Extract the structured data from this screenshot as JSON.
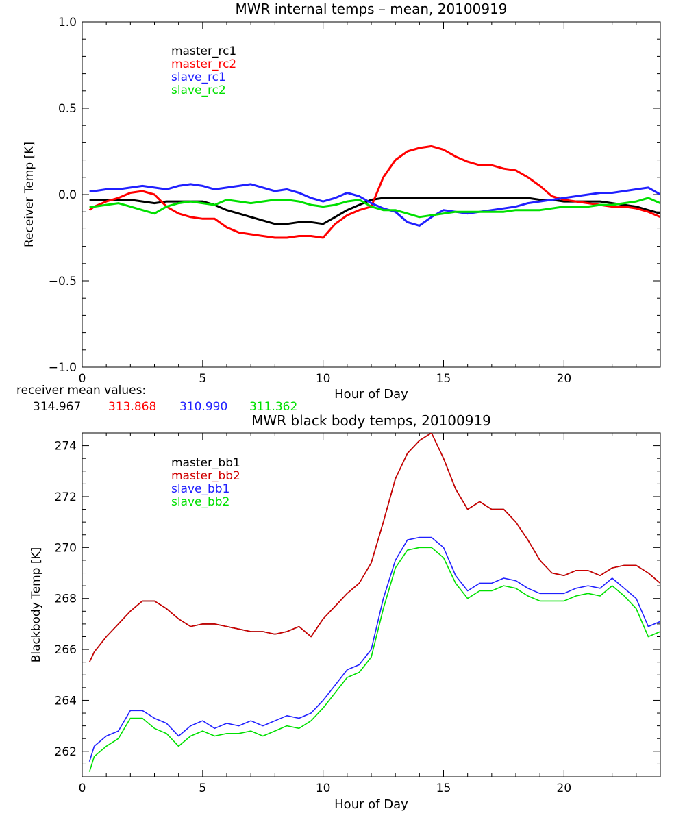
{
  "chart_data": [
    {
      "type": "line",
      "title": "MWR internal temps – mean, 20100919",
      "xlabel": "Hour of Day",
      "ylabel": "Receiver Temp [K]",
      "xlim": [
        0,
        24
      ],
      "ylim": [
        -1.0,
        1.0
      ],
      "x_ticks": [
        0,
        5,
        10,
        15,
        20
      ],
      "x_tick_labels": [
        "0",
        "5",
        "10",
        "15",
        "20"
      ],
      "y_ticks": [
        -1.0,
        -0.5,
        0.0,
        0.5,
        1.0
      ],
      "y_tick_labels": [
        "−1.0",
        "−0.5",
        "0.0",
        "0.5",
        "1.0"
      ],
      "grid": false,
      "legend_placement": "top-left",
      "x": [
        0.3,
        0.5,
        1.0,
        1.5,
        2.0,
        2.5,
        3.0,
        3.5,
        4.0,
        4.5,
        5.0,
        5.5,
        6.0,
        6.5,
        7.0,
        7.5,
        8.0,
        8.5,
        9.0,
        9.5,
        10.0,
        10.5,
        11.0,
        11.5,
        12.0,
        12.5,
        13.0,
        13.5,
        14.0,
        14.5,
        15.0,
        15.5,
        16.0,
        16.5,
        17.0,
        17.5,
        18.0,
        18.5,
        19.0,
        19.5,
        20.0,
        20.5,
        21.0,
        21.5,
        22.0,
        22.5,
        23.0,
        23.5,
        24.0
      ],
      "series": [
        {
          "name": "master_rc1",
          "color": "#000000",
          "values": [
            -0.03,
            -0.03,
            -0.03,
            -0.03,
            -0.03,
            -0.04,
            -0.05,
            -0.04,
            -0.04,
            -0.04,
            -0.04,
            -0.06,
            -0.09,
            -0.11,
            -0.13,
            -0.15,
            -0.17,
            -0.17,
            -0.16,
            -0.16,
            -0.17,
            -0.13,
            -0.09,
            -0.06,
            -0.03,
            -0.02,
            -0.02,
            -0.02,
            -0.02,
            -0.02,
            -0.02,
            -0.02,
            -0.02,
            -0.02,
            -0.02,
            -0.02,
            -0.02,
            -0.02,
            -0.03,
            -0.03,
            -0.04,
            -0.04,
            -0.04,
            -0.04,
            -0.05,
            -0.06,
            -0.07,
            -0.09,
            -0.11
          ]
        },
        {
          "name": "master_rc2",
          "color": "#ff0000",
          "values": [
            -0.09,
            -0.07,
            -0.04,
            -0.02,
            0.01,
            0.02,
            0.0,
            -0.07,
            -0.11,
            -0.13,
            -0.14,
            -0.14,
            -0.19,
            -0.22,
            -0.23,
            -0.24,
            -0.25,
            -0.25,
            -0.24,
            -0.24,
            -0.25,
            -0.17,
            -0.12,
            -0.09,
            -0.07,
            0.1,
            0.2,
            0.25,
            0.27,
            0.28,
            0.26,
            0.22,
            0.19,
            0.17,
            0.17,
            0.15,
            0.14,
            0.1,
            0.05,
            -0.01,
            -0.03,
            -0.04,
            -0.05,
            -0.06,
            -0.07,
            -0.07,
            -0.08,
            -0.1,
            -0.13
          ]
        },
        {
          "name": "slave_rc1",
          "color": "#2020ff",
          "values": [
            0.02,
            0.02,
            0.03,
            0.03,
            0.04,
            0.05,
            0.04,
            0.03,
            0.05,
            0.06,
            0.05,
            0.03,
            0.04,
            0.05,
            0.06,
            0.04,
            0.02,
            0.03,
            0.01,
            -0.02,
            -0.04,
            -0.02,
            0.01,
            -0.01,
            -0.05,
            -0.08,
            -0.1,
            -0.16,
            -0.18,
            -0.13,
            -0.09,
            -0.1,
            -0.11,
            -0.1,
            -0.09,
            -0.08,
            -0.07,
            -0.05,
            -0.04,
            -0.03,
            -0.02,
            -0.01,
            0.0,
            0.01,
            0.01,
            0.02,
            0.03,
            0.04,
            0.0
          ]
        },
        {
          "name": "slave_rc2",
          "color": "#00e000",
          "values": [
            -0.07,
            -0.07,
            -0.06,
            -0.05,
            -0.07,
            -0.09,
            -0.11,
            -0.07,
            -0.05,
            -0.04,
            -0.05,
            -0.06,
            -0.03,
            -0.04,
            -0.05,
            -0.04,
            -0.03,
            -0.03,
            -0.04,
            -0.06,
            -0.07,
            -0.06,
            -0.04,
            -0.03,
            -0.07,
            -0.09,
            -0.09,
            -0.11,
            -0.13,
            -0.12,
            -0.11,
            -0.1,
            -0.1,
            -0.1,
            -0.1,
            -0.1,
            -0.09,
            -0.09,
            -0.09,
            -0.08,
            -0.07,
            -0.07,
            -0.07,
            -0.06,
            -0.06,
            -0.05,
            -0.04,
            -0.02,
            -0.05
          ]
        }
      ]
    },
    {
      "type": "line",
      "title": "MWR black body temps, 20100919",
      "xlabel": "Hour of Day",
      "ylabel": "Blackbody Temp [K]",
      "xlim": [
        0,
        24
      ],
      "ylim": [
        261,
        274.5
      ],
      "x_ticks": [
        0,
        5,
        10,
        15,
        20
      ],
      "x_tick_labels": [
        "0",
        "5",
        "10",
        "15",
        "20"
      ],
      "y_ticks": [
        262,
        264,
        266,
        268,
        270,
        272,
        274
      ],
      "y_tick_labels": [
        "262",
        "264",
        "266",
        "268",
        "270",
        "272",
        "274"
      ],
      "grid": false,
      "legend_placement": "top-left",
      "x": [
        0.3,
        0.5,
        1.0,
        1.5,
        2.0,
        2.5,
        3.0,
        3.5,
        4.0,
        4.5,
        5.0,
        5.5,
        6.0,
        6.5,
        7.0,
        7.5,
        8.0,
        8.5,
        9.0,
        9.5,
        10.0,
        10.5,
        11.0,
        11.5,
        12.0,
        12.5,
        13.0,
        13.5,
        14.0,
        14.5,
        15.0,
        15.5,
        16.0,
        16.5,
        17.0,
        17.5,
        18.0,
        18.5,
        19.0,
        19.5,
        20.0,
        20.5,
        21.0,
        21.5,
        22.0,
        22.5,
        23.0,
        23.5,
        24.0
      ],
      "series": [
        {
          "name": "master_bb1",
          "color": "#000000",
          "values": [
            265.5,
            265.9,
            266.5,
            267.0,
            267.5,
            267.9,
            267.9,
            267.6,
            267.2,
            266.9,
            267.0,
            267.0,
            266.9,
            266.8,
            266.7,
            266.7,
            266.6,
            266.7,
            266.9,
            266.5,
            267.2,
            267.7,
            268.2,
            268.6,
            269.4,
            271.0,
            272.7,
            273.7,
            274.2,
            274.5,
            273.5,
            272.3,
            271.5,
            271.8,
            271.5,
            271.5,
            271.0,
            270.3,
            269.5,
            269.0,
            268.9,
            269.1,
            269.1,
            268.9,
            269.2,
            269.3,
            269.3,
            269.0,
            268.6
          ]
        },
        {
          "name": "master_bb2",
          "color": "#d00000",
          "values": [
            265.5,
            265.9,
            266.5,
            267.0,
            267.5,
            267.9,
            267.9,
            267.6,
            267.2,
            266.9,
            267.0,
            267.0,
            266.9,
            266.8,
            266.7,
            266.7,
            266.6,
            266.7,
            266.9,
            266.5,
            267.2,
            267.7,
            268.2,
            268.6,
            269.4,
            271.0,
            272.7,
            273.7,
            274.2,
            274.5,
            273.5,
            272.3,
            271.5,
            271.8,
            271.5,
            271.5,
            271.0,
            270.3,
            269.5,
            269.0,
            268.9,
            269.1,
            269.1,
            268.9,
            269.2,
            269.3,
            269.3,
            269.0,
            268.6
          ]
        },
        {
          "name": "slave_bb1",
          "color": "#2020ff",
          "values": [
            261.6,
            262.2,
            262.6,
            262.8,
            263.6,
            263.6,
            263.3,
            263.1,
            262.6,
            263.0,
            263.2,
            262.9,
            263.1,
            263.0,
            263.2,
            263.0,
            263.2,
            263.4,
            263.3,
            263.5,
            264.0,
            264.6,
            265.2,
            265.4,
            266.0,
            268.0,
            269.5,
            270.3,
            270.4,
            270.4,
            270.0,
            268.9,
            268.3,
            268.6,
            268.6,
            268.8,
            268.7,
            268.4,
            268.2,
            268.2,
            268.2,
            268.4,
            268.5,
            268.4,
            268.8,
            268.4,
            268.0,
            266.9,
            267.1
          ]
        },
        {
          "name": "slave_bb2",
          "color": "#00e000",
          "values": [
            261.2,
            261.8,
            262.2,
            262.5,
            263.3,
            263.3,
            262.9,
            262.7,
            262.2,
            262.6,
            262.8,
            262.6,
            262.7,
            262.7,
            262.8,
            262.6,
            262.8,
            263.0,
            262.9,
            263.2,
            263.7,
            264.3,
            264.9,
            265.1,
            265.7,
            267.6,
            269.2,
            269.9,
            270.0,
            270.0,
            269.6,
            268.6,
            268.0,
            268.3,
            268.3,
            268.5,
            268.4,
            268.1,
            267.9,
            267.9,
            267.9,
            268.1,
            268.2,
            268.1,
            268.5,
            268.1,
            267.6,
            266.5,
            266.7
          ]
        }
      ]
    }
  ],
  "receiver_mean": {
    "label": "receiver mean values:",
    "values": [
      {
        "text": "314.967",
        "color": "#000000"
      },
      {
        "text": "313.868",
        "color": "#ff0000"
      },
      {
        "text": "310.990",
        "color": "#2020ff"
      },
      {
        "text": "311.362",
        "color": "#00e000"
      }
    ]
  }
}
